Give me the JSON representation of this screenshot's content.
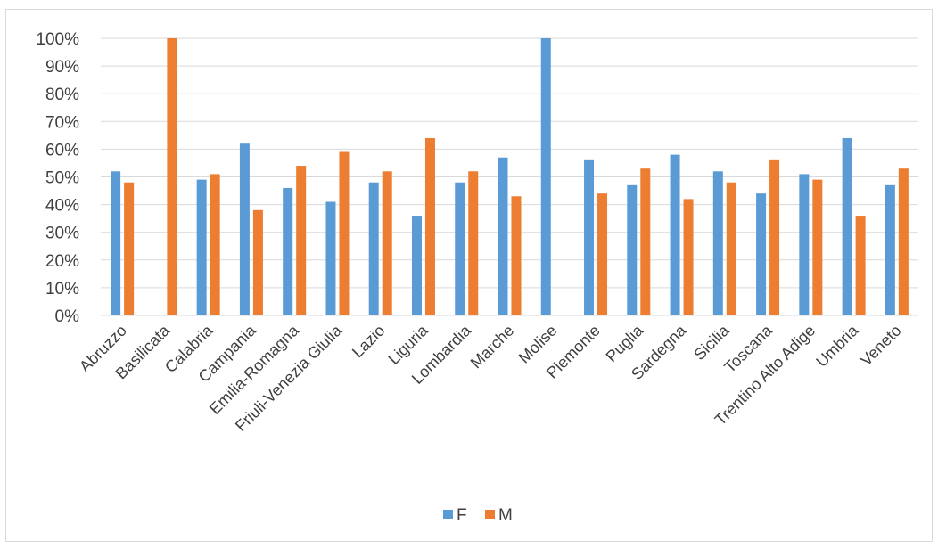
{
  "chart_data": {
    "type": "bar",
    "categories": [
      "Abruzzo",
      "Basilicata",
      "Calabria",
      "Campania",
      "Emilia-Romagna",
      "Friuli-Venezia Giulia",
      "Lazio",
      "Liguria",
      "Lombardia",
      "Marche",
      "Molise",
      "Piemonte",
      "Puglia",
      "Sardegna",
      "Sicilia",
      "Toscana",
      "Trentino Alto Adige",
      "Umbria",
      "Veneto"
    ],
    "series": [
      {
        "name": "F",
        "color": "#5B9BD5",
        "values": [
          52,
          0,
          49,
          62,
          46,
          41,
          48,
          36,
          48,
          57,
          100,
          56,
          47,
          58,
          52,
          44,
          51,
          64,
          47
        ]
      },
      {
        "name": "M",
        "color": "#ED7D31",
        "values": [
          48,
          100,
          51,
          38,
          54,
          59,
          52,
          64,
          52,
          43,
          0,
          44,
          53,
          42,
          48,
          56,
          49,
          36,
          53
        ]
      }
    ],
    "yticks": [
      "0%",
      "10%",
      "20%",
      "30%",
      "40%",
      "50%",
      "60%",
      "70%",
      "80%",
      "90%",
      "100%"
    ],
    "ylim": [
      0,
      100
    ],
    "grid": true,
    "legend_position": "bottom"
  }
}
